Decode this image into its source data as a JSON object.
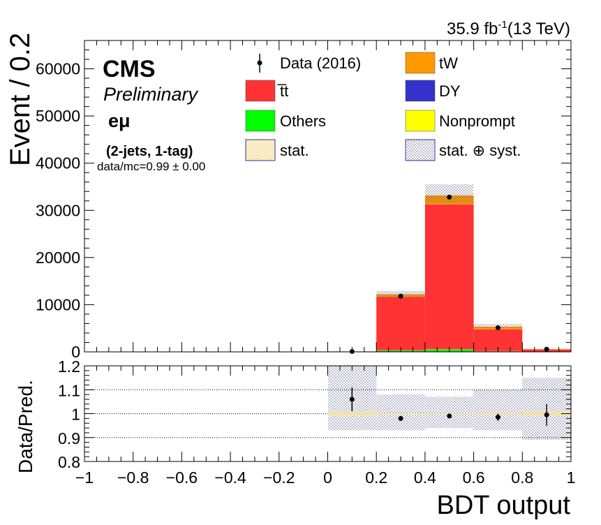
{
  "header": {
    "lumi": "35.9 fb",
    "lumi_exp": "-1",
    "energy": "(13 TeV)"
  },
  "labels": {
    "experiment": "CMS",
    "status": "Preliminary",
    "channel": "eμ",
    "region": "(2-jets, 1-tag)",
    "ratio_summary": "data/mc=0.99 ± 0.00"
  },
  "legend": [
    {
      "label": "Data (2016)",
      "kind": "data",
      "color": "#000000"
    },
    {
      "label": "tW",
      "kind": "fill",
      "color": "#ff9900"
    },
    {
      "label": "t̅t",
      "kind": "fill",
      "color": "#ff3333"
    },
    {
      "label": "DY",
      "kind": "fill",
      "color": "#3333cc"
    },
    {
      "label": "Others",
      "kind": "fill",
      "color": "#00ff00"
    },
    {
      "label": "Nonprompt",
      "kind": "fill",
      "color": "#ffff00"
    },
    {
      "label": "stat.",
      "kind": "hatch-stat",
      "color": "#e8c96a"
    },
    {
      "label": "stat. ⊕ syst.",
      "kind": "hatch-syst",
      "color": "#6a6a9a"
    }
  ],
  "chart_data": [
    {
      "type": "bar",
      "stacked": true,
      "xlabel": "BDT output",
      "ylabel": "Event / 0.2",
      "xlim": [
        -1,
        1
      ],
      "ylim": [
        0,
        66000
      ],
      "y_ticks": [
        0,
        10000,
        20000,
        30000,
        40000,
        50000,
        60000
      ],
      "x_ticks": [
        -1,
        -0.8,
        -0.6,
        -0.4,
        -0.2,
        0,
        0.2,
        0.4,
        0.6,
        0.8,
        1
      ],
      "x_tick_labels": [
        "−1",
        "−0.8",
        "−0.6",
        "−0.4",
        "−0.2",
        "0",
        "0.2",
        "0.4",
        "0.6",
        "0.8",
        "1"
      ],
      "bin_edges": [
        0,
        0.2,
        0.4,
        0.6,
        0.8,
        1.0
      ],
      "series": [
        {
          "name": "Others",
          "color": "#00ff00",
          "values": [
            5,
            250,
            450,
            120,
            15
          ]
        },
        {
          "name": "DY",
          "color": "#3333cc",
          "values": [
            5,
            40,
            40,
            30,
            10
          ]
        },
        {
          "name": "Nonprompt",
          "color": "#ffff00",
          "values": [
            5,
            60,
            80,
            30,
            10
          ]
        },
        {
          "name": "t̅t",
          "color": "#ff3333",
          "values": [
            40,
            11300,
            30700,
            4600,
            470
          ]
        },
        {
          "name": "tW",
          "color": "#ff9900",
          "values": [
            5,
            550,
            1900,
            550,
            60
          ]
        }
      ],
      "syst_band": {
        "up": [
          120,
          12900,
          35500,
          5900,
          700
        ],
        "down": [
          50,
          11500,
          31500,
          5000,
          500
        ]
      },
      "data": {
        "x": [
          0.1,
          0.3,
          0.5,
          0.7,
          0.9
        ],
        "y": [
          80,
          11800,
          32800,
          5100,
          550
        ],
        "yerr": [
          10,
          110,
          180,
          70,
          25
        ]
      }
    },
    {
      "type": "scatter",
      "xlabel": "BDT output",
      "ylabel": "Data/Pred.",
      "xlim": [
        -1,
        1
      ],
      "ylim": [
        0.8,
        1.2
      ],
      "y_ticks": [
        0.8,
        0.9,
        1,
        1.1,
        1.2
      ],
      "y_tick_labels": [
        "0.8",
        "0.9",
        "1",
        "1.1",
        "1.2"
      ],
      "gridlines": [
        0.9,
        1.0,
        1.1
      ],
      "x": [
        0.1,
        0.3,
        0.5,
        0.7,
        0.9
      ],
      "y": [
        1.06,
        0.98,
        0.99,
        0.985,
        0.995
      ],
      "yerr": [
        0.05,
        0.01,
        0.005,
        0.015,
        0.045
      ],
      "stat_band": [
        0.01,
        0.003,
        0.002,
        0.004,
        0.01
      ],
      "syst_band": {
        "up": [
          1.2,
          1.08,
          1.07,
          1.1,
          1.15
        ],
        "down": [
          0.93,
          0.93,
          0.94,
          0.93,
          0.89
        ]
      }
    }
  ]
}
